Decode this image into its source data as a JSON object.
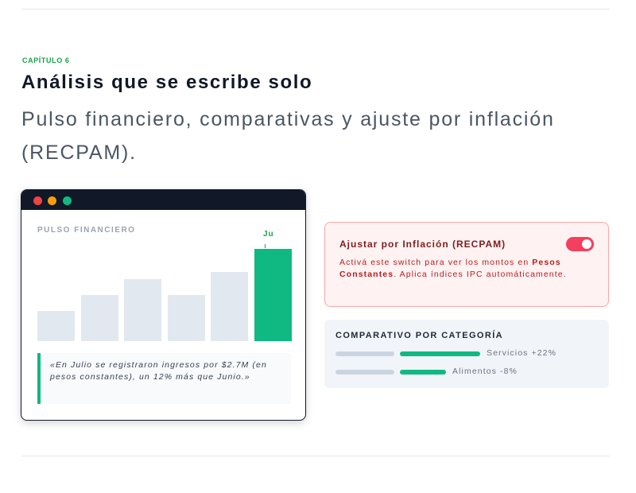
{
  "section": {
    "eyebrow": "CAPÍTULO 6",
    "title": "Análisis que se escribe solo",
    "subtitle": "Pulso financiero, comparativas y ajuste por inflación (RECPAM)."
  },
  "window": {
    "panel_label": "PULSO FINANCIERO",
    "highlight_label": "Ju",
    "quote": "«En Julio se registraron ingresos por $2.7M (en pesos constantes), un 12% más que Junio.»"
  },
  "chart_data": {
    "type": "bar",
    "categories": [
      "",
      "",
      "",
      "",
      "",
      "Ju"
    ],
    "values": [
      0.33,
      0.5,
      0.67,
      0.5,
      0.75,
      1.0
    ],
    "highlight_index": 5
  },
  "inflation": {
    "title": "Ajustar por Inflación (RECPAM)",
    "desc_before": "Activá este switch para ver los montos en ",
    "desc_bold": "Pesos Constantes",
    "desc_after": ". Aplica índices IPC automáticamente.",
    "switch_on": true
  },
  "comparative": {
    "title": "COMPARATIVO POR CATEGORÍA",
    "rows": [
      {
        "label": "Servicios +22%",
        "fill": 1.0
      },
      {
        "label": "Alimentos -8%",
        "fill": 0.57
      }
    ]
  },
  "colors": {
    "accent": "#10b981",
    "danger": "#f43f5e",
    "dark": "#111827"
  }
}
